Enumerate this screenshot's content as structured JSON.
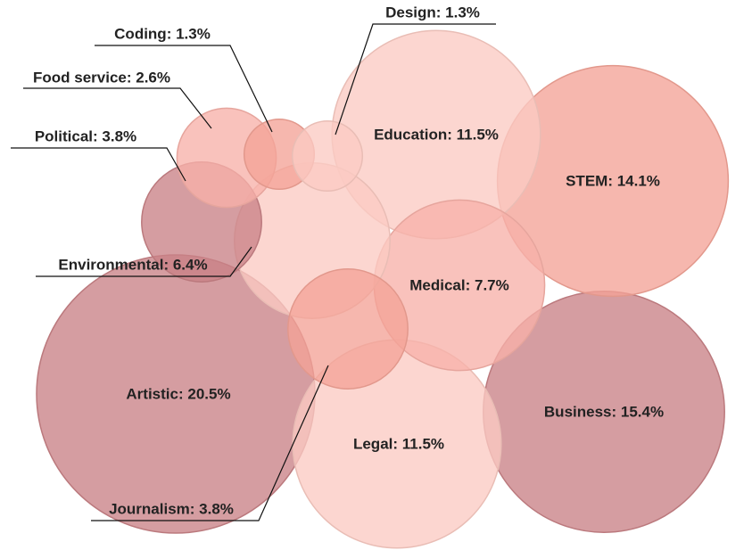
{
  "chart_data": {
    "type": "bubble",
    "title": "",
    "value_suffix": "%",
    "items": [
      {
        "name": "Artistic",
        "value": 20.5,
        "label": "Artistic: 20.5%",
        "color": "#c98286"
      },
      {
        "name": "Business",
        "value": 15.4,
        "label": "Business: 15.4%",
        "color": "#c98286"
      },
      {
        "name": "STEM",
        "value": 14.1,
        "label": "STEM: 14.1%",
        "color": "#f3a397"
      },
      {
        "name": "Education",
        "value": 11.5,
        "label": "Education: 11.5%",
        "color": "#fbcbc3"
      },
      {
        "name": "Legal",
        "value": 11.5,
        "label": "Legal: 11.5%",
        "color": "#fbcbc3"
      },
      {
        "name": "Medical",
        "value": 7.7,
        "label": "Medical: 7.7%",
        "color": "#f7b1a9"
      },
      {
        "name": "Environmental",
        "value": 6.4,
        "label": "Environmental: 6.4%",
        "color": "#fbcbc3"
      },
      {
        "name": "Political",
        "value": 3.8,
        "label": "Political: 3.8%",
        "color": "#c98286"
      },
      {
        "name": "Journalism",
        "value": 3.8,
        "label": "Journalism: 3.8%",
        "color": "#f3a397"
      },
      {
        "name": "Food service",
        "value": 2.6,
        "label": "Food service: 2.6%",
        "color": "#f7b1a9"
      },
      {
        "name": "Coding",
        "value": 1.3,
        "label": "Coding: 1.3%",
        "color": "#f3a397"
      },
      {
        "name": "Design",
        "value": 1.3,
        "label": "Design: 1.3%",
        "color": "#fbcbc3"
      }
    ]
  }
}
